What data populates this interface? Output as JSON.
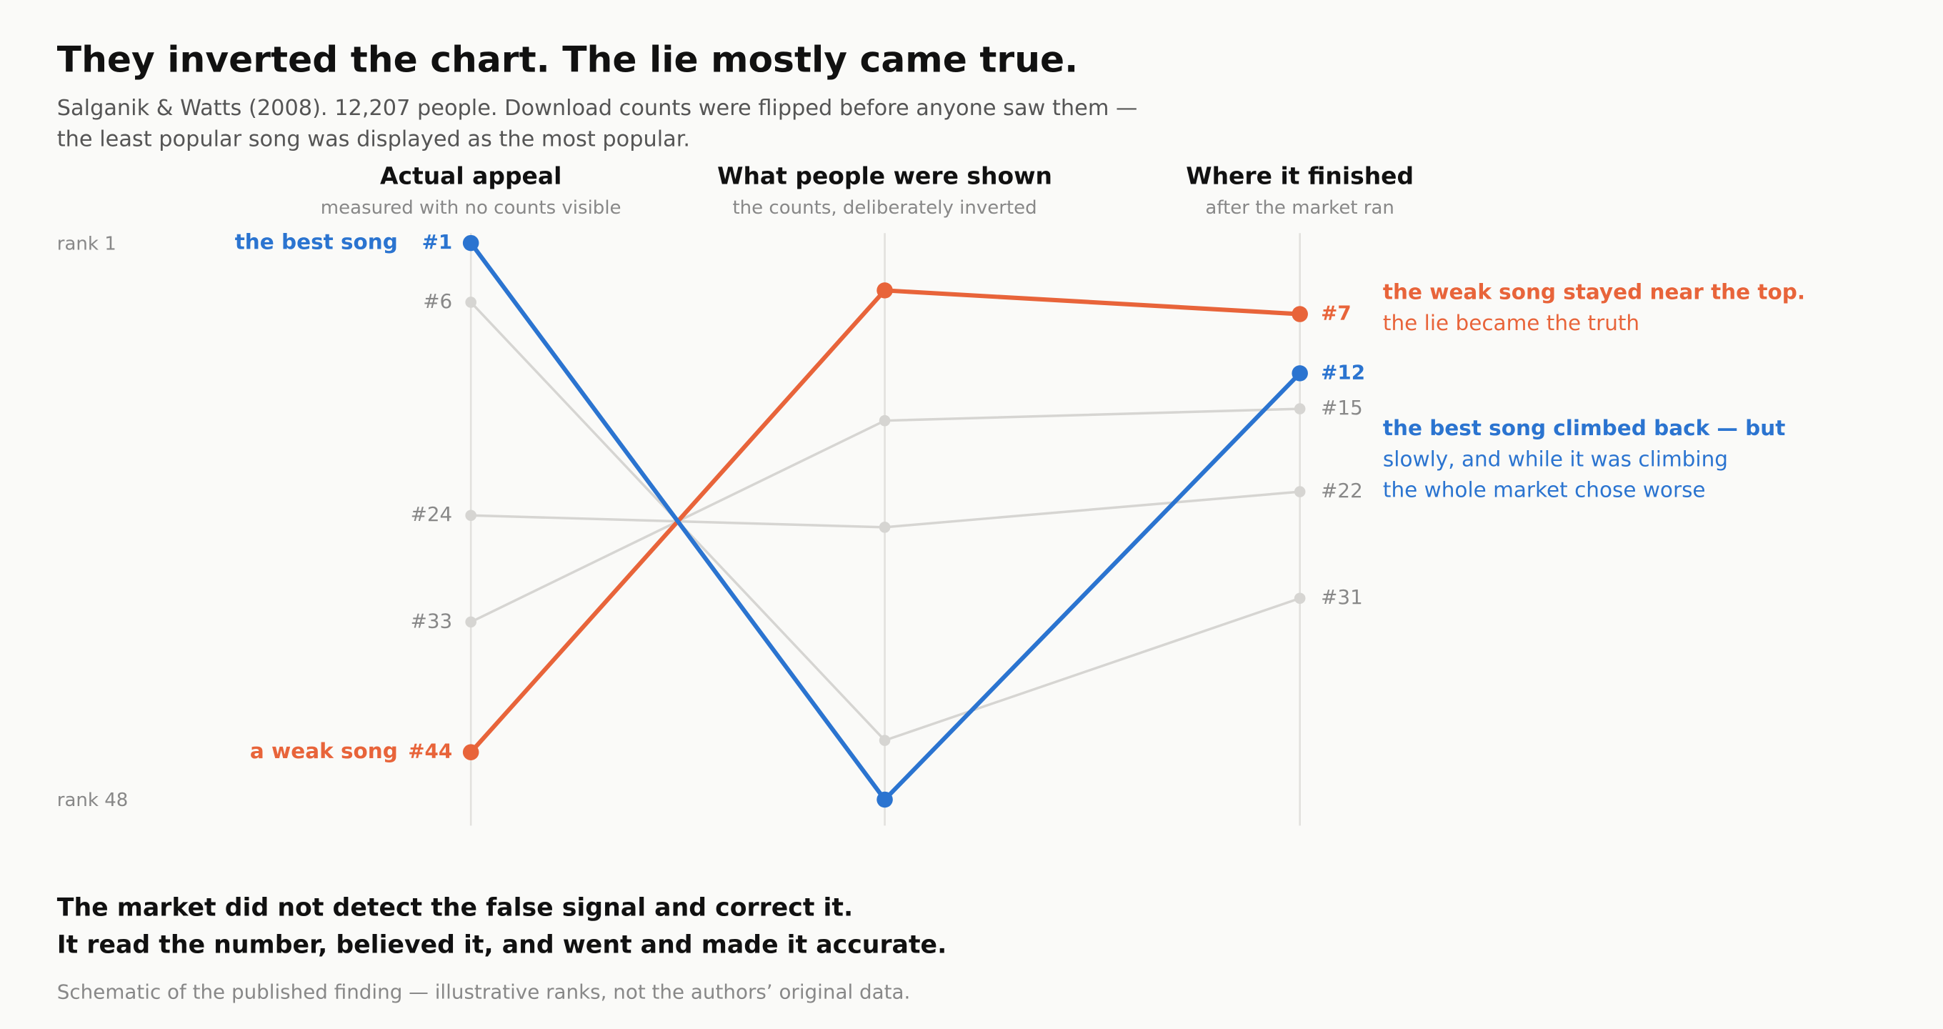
{
  "chart_data": {
    "type": "slope",
    "title": "They inverted the chart. The lie mostly came true.",
    "subtitle": [
      "Salganik & Watts (2008). 12,207 people. Download counts were flipped before anyone saw them —",
      "the least popular song was displayed as the most popular."
    ],
    "categories": [
      "Actual appeal",
      "What people were shown",
      "Where it finished"
    ],
    "category_notes": [
      "measured with no counts visible",
      "the counts, deliberately inverted",
      "after the market ran"
    ],
    "ylim": [
      1,
      48
    ],
    "y_inverted": true,
    "yticks": [
      {
        "value": 1,
        "label": "rank 1"
      },
      {
        "value": 48,
        "label": "rank 48"
      }
    ],
    "series": [
      {
        "name": "the best song",
        "color": "#2b74d0",
        "highlight": true,
        "values": [
          1,
          48,
          12
        ],
        "value_labels": [
          "#1",
          null,
          "#12"
        ],
        "annotation": [
          "the best song climbed back — but",
          "slowly, and while it was climbing",
          "the whole market chose worse"
        ]
      },
      {
        "name": "a weak song",
        "color": "#e8643a",
        "highlight": true,
        "values": [
          44,
          5,
          7
        ],
        "value_labels": [
          "#44",
          null,
          "#7"
        ],
        "annotation": [
          "the weak song stayed near the top.",
          "the lie became the truth"
        ]
      },
      {
        "color": "#d6d5d2",
        "values": [
          6,
          43,
          31
        ],
        "value_labels": [
          "#6",
          null,
          "#31"
        ]
      },
      {
        "color": "#d6d5d2",
        "values": [
          24,
          25,
          22
        ],
        "value_labels": [
          "#24",
          null,
          "#22"
        ]
      },
      {
        "color": "#d6d5d2",
        "values": [
          33,
          16,
          15
        ],
        "value_labels": [
          "#33",
          null,
          "#15"
        ]
      }
    ],
    "conclusion": [
      "The market did not detect the false signal and correct it.",
      "It read the number, believed it, and went and made it accurate."
    ],
    "note": "Schematic of the published finding — illustrative ranks, not the authors’ original data."
  }
}
